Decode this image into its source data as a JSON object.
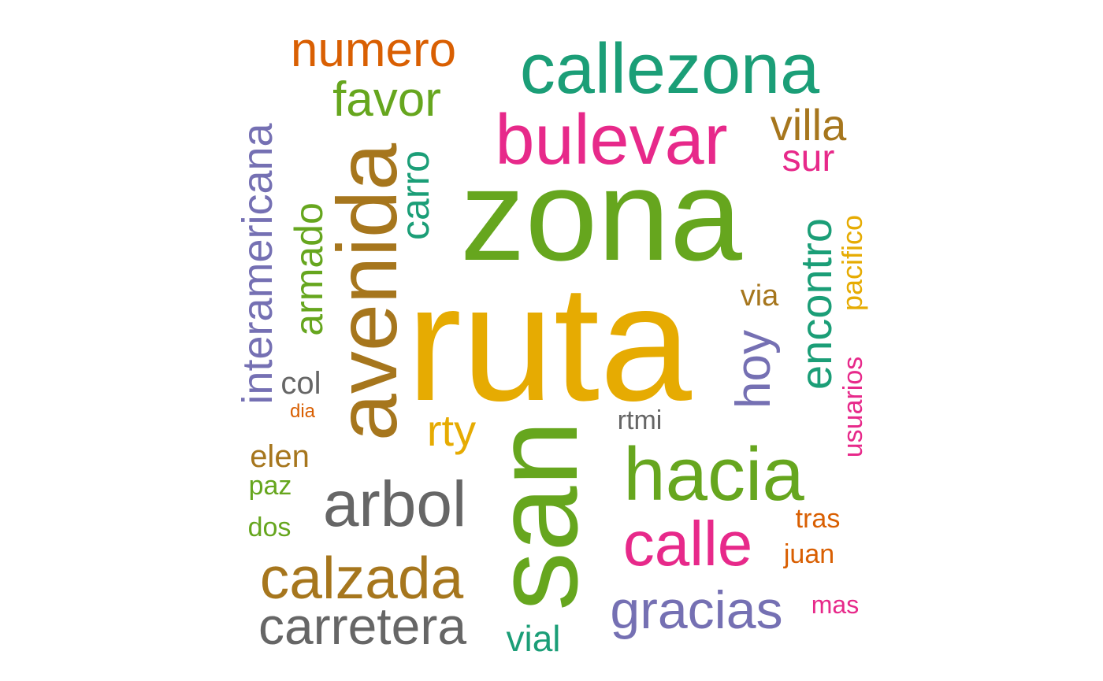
{
  "palette": {
    "teal": "#1b9e77",
    "orange": "#d95f02",
    "purple": "#7570b3",
    "magenta": "#e7298a",
    "green": "#66a61e",
    "gold": "#e6ab02",
    "brown": "#a6761d",
    "gray": "#666666"
  },
  "words": [
    {
      "text": "ruta",
      "color": "gold"
    },
    {
      "text": "zona",
      "color": "green"
    },
    {
      "text": "san",
      "color": "green"
    },
    {
      "text": "avenida",
      "color": "brown"
    },
    {
      "text": "callezona",
      "color": "teal"
    },
    {
      "text": "bulevar",
      "color": "magenta"
    },
    {
      "text": "hacia",
      "color": "green"
    },
    {
      "text": "arbol",
      "color": "gray"
    },
    {
      "text": "calle",
      "color": "magenta"
    },
    {
      "text": "calzada",
      "color": "brown"
    },
    {
      "text": "carretera",
      "color": "gray"
    },
    {
      "text": "gracias",
      "color": "purple"
    },
    {
      "text": "numero",
      "color": "orange"
    },
    {
      "text": "interamericana",
      "color": "purple"
    },
    {
      "text": "encontro",
      "color": "teal"
    },
    {
      "text": "favor",
      "color": "green"
    },
    {
      "text": "hoy",
      "color": "purple"
    },
    {
      "text": "armado",
      "color": "green"
    },
    {
      "text": "carro",
      "color": "teal"
    },
    {
      "text": "villa",
      "color": "brown"
    },
    {
      "text": "sur",
      "color": "magenta"
    },
    {
      "text": "pacifico",
      "color": "gold"
    },
    {
      "text": "usuarios",
      "color": "magenta"
    },
    {
      "text": "rty",
      "color": "gold"
    },
    {
      "text": "vial",
      "color": "teal"
    },
    {
      "text": "elen",
      "color": "brown"
    },
    {
      "text": "col",
      "color": "gray"
    },
    {
      "text": "via",
      "color": "brown"
    },
    {
      "text": "rtmi",
      "color": "gray"
    },
    {
      "text": "juan",
      "color": "orange"
    },
    {
      "text": "tras",
      "color": "orange"
    },
    {
      "text": "mas",
      "color": "magenta"
    },
    {
      "text": "paz",
      "color": "green"
    },
    {
      "text": "dos",
      "color": "green"
    },
    {
      "text": "dia",
      "color": "orange"
    }
  ]
}
